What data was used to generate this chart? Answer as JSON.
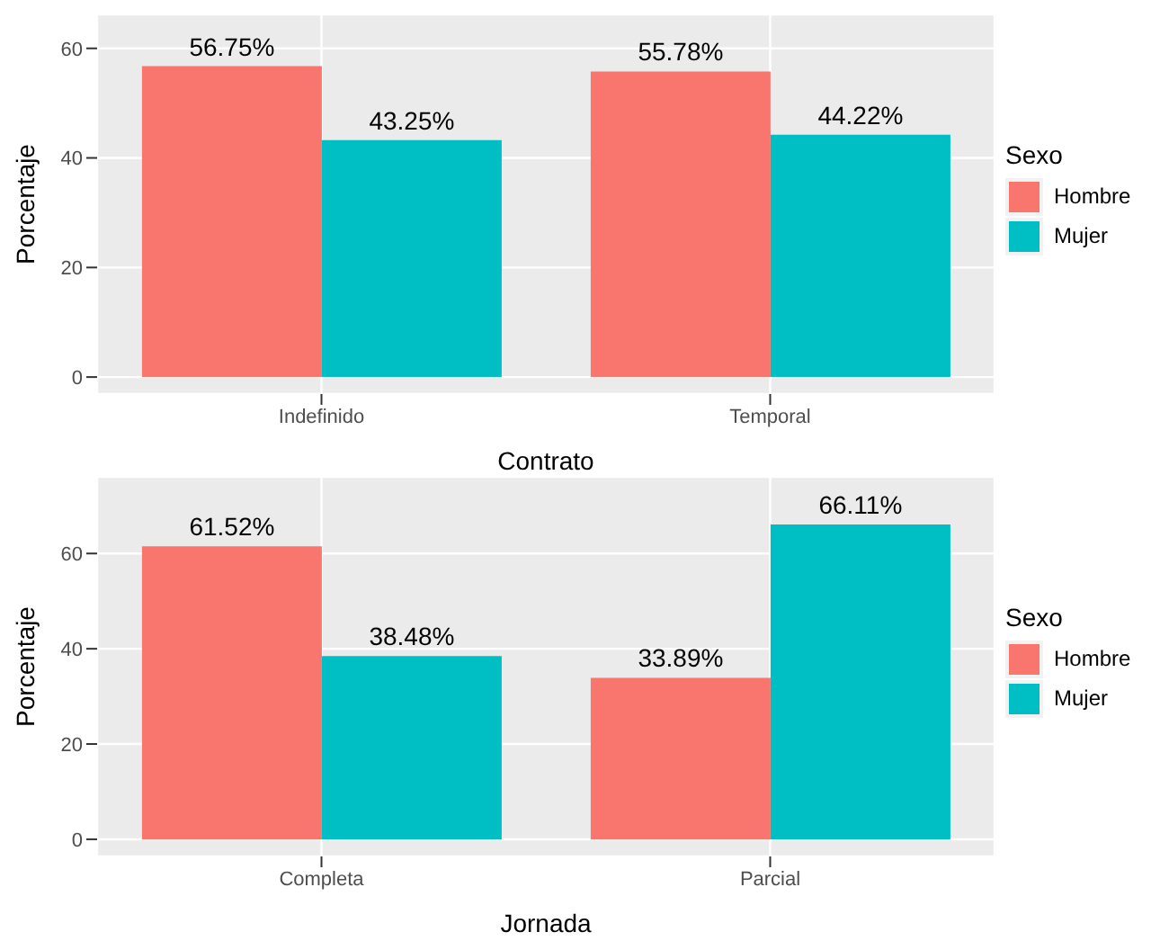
{
  "chart_data": [
    {
      "type": "bar",
      "categories": [
        "Indefinido",
        "Temporal"
      ],
      "xlabel": "Contrato",
      "ylabel": "Porcentaje",
      "legend_title": "Sexo",
      "legend": "right",
      "grid": true,
      "ylim": [
        -3.1,
        66.2
      ],
      "yticks": [
        0,
        20,
        40,
        60
      ],
      "series": [
        {
          "name": "Hombre",
          "color": "#f8766d",
          "values": [
            56.75,
            55.78
          ],
          "value_labels": [
            "56.75%",
            "55.78%"
          ]
        },
        {
          "name": "Mujer",
          "color": "#00bfc4",
          "values": [
            43.25,
            44.22
          ],
          "value_labels": [
            "43.25%",
            "44.22%"
          ]
        }
      ]
    },
    {
      "type": "bar",
      "categories": [
        "Completa",
        "Parcial"
      ],
      "xlabel": "Jornada",
      "ylabel": "Porcentaje",
      "legend_title": "Sexo",
      "legend": "right",
      "grid": true,
      "ylim": [
        -3.6,
        76.1
      ],
      "yticks": [
        0,
        20,
        40,
        60
      ],
      "series": [
        {
          "name": "Hombre",
          "color": "#f8766d",
          "values": [
            61.52,
            33.89
          ],
          "value_labels": [
            "61.52%",
            "33.89%"
          ]
        },
        {
          "name": "Mujer",
          "color": "#00bfc4",
          "values": [
            38.48,
            66.11
          ],
          "value_labels": [
            "38.48%",
            "66.11%"
          ]
        }
      ]
    }
  ]
}
